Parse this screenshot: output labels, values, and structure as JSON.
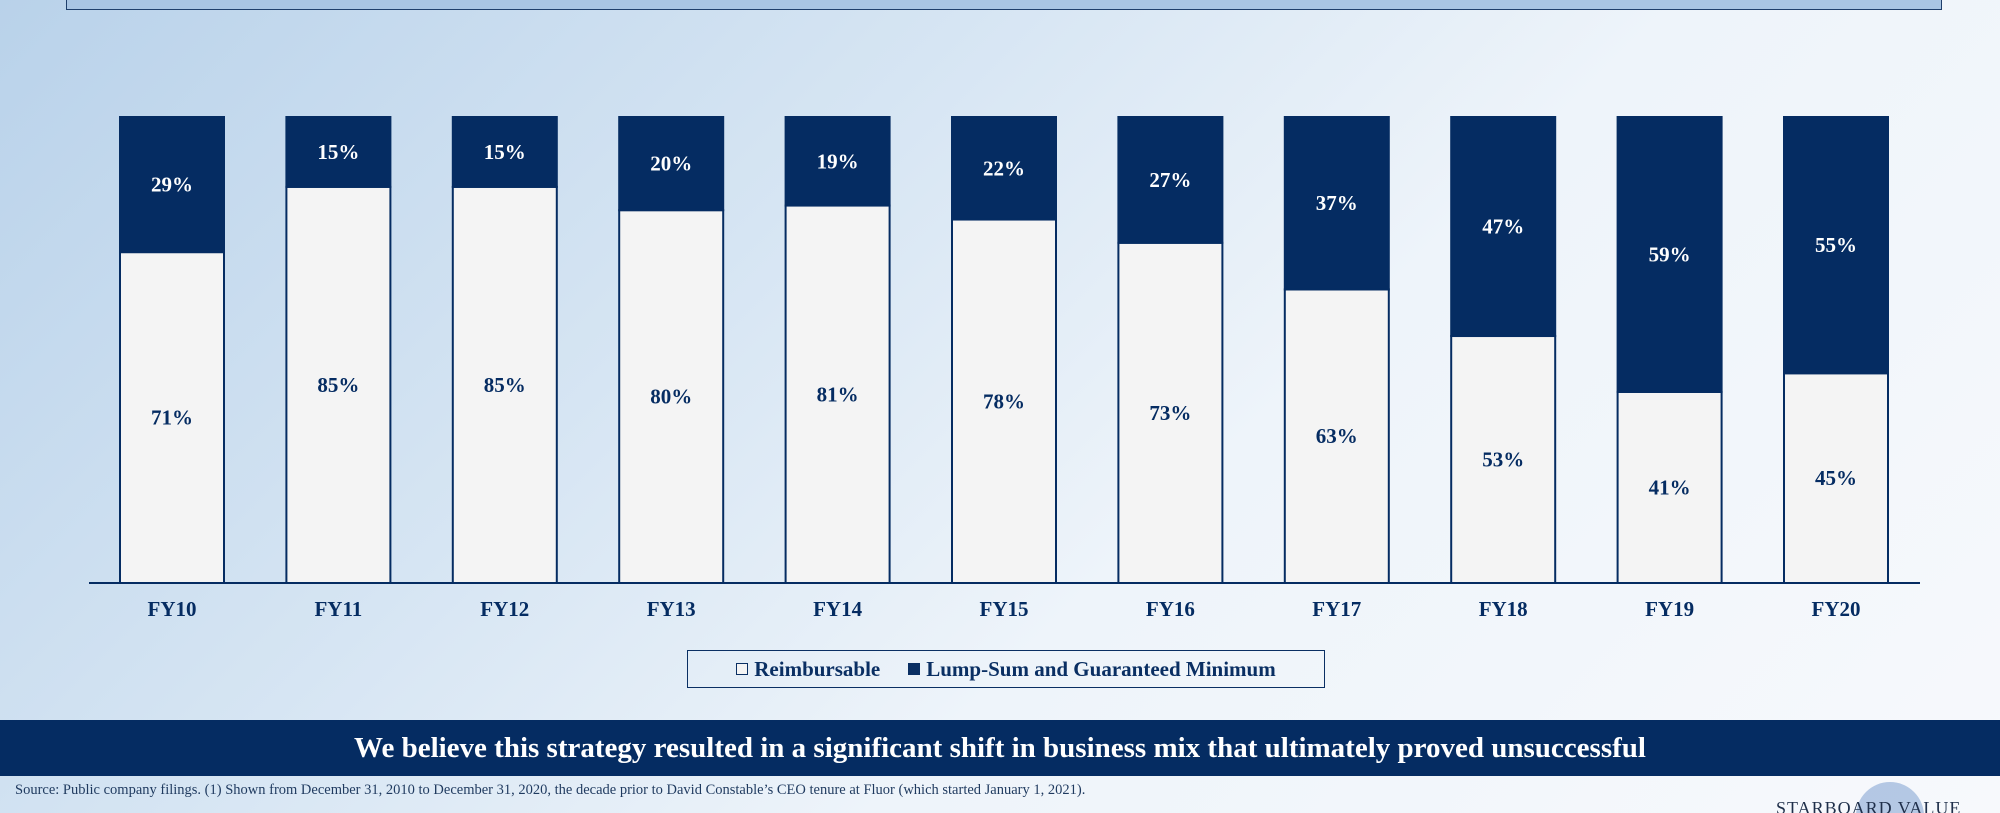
{
  "chart_data": {
    "type": "bar",
    "stacked": true,
    "categories": [
      "FY10",
      "FY11",
      "FY12",
      "FY13",
      "FY14",
      "FY15",
      "FY16",
      "FY17",
      "FY18",
      "FY19",
      "FY20"
    ],
    "series": [
      {
        "name": "Reimbursable",
        "values": [
          71,
          85,
          85,
          80,
          81,
          78,
          73,
          63,
          53,
          41,
          45
        ],
        "color": "#f4f4f4"
      },
      {
        "name": "Lump-Sum and Guaranteed Minimum",
        "values": [
          29,
          15,
          15,
          20,
          19,
          22,
          27,
          37,
          47,
          59,
          55
        ],
        "color": "#052c62"
      }
    ],
    "value_suffix": "%",
    "ylim": [
      0,
      100
    ],
    "grid": false,
    "legend_placement": "bottom-center"
  },
  "legend": {
    "item1": "Reimbursable",
    "item2": "Lump-Sum and Guaranteed Minimum"
  },
  "banner": {
    "text": "We believe this strategy resulted in a significant shift in business mix that ultimately proved unsuccessful"
  },
  "footnote": {
    "text": "Source: Public company filings. (1) Shown from December 31, 2010 to December 31, 2020, the decade prior to David Constable’s CEO tenure at Fluor (which started January 1, 2021)."
  },
  "logo": {
    "text": "STARBOARD VALUE"
  },
  "colors": {
    "navy": "#052c62",
    "light_bar": "#f4f4f4",
    "title_bar": "#a9c5e3"
  }
}
